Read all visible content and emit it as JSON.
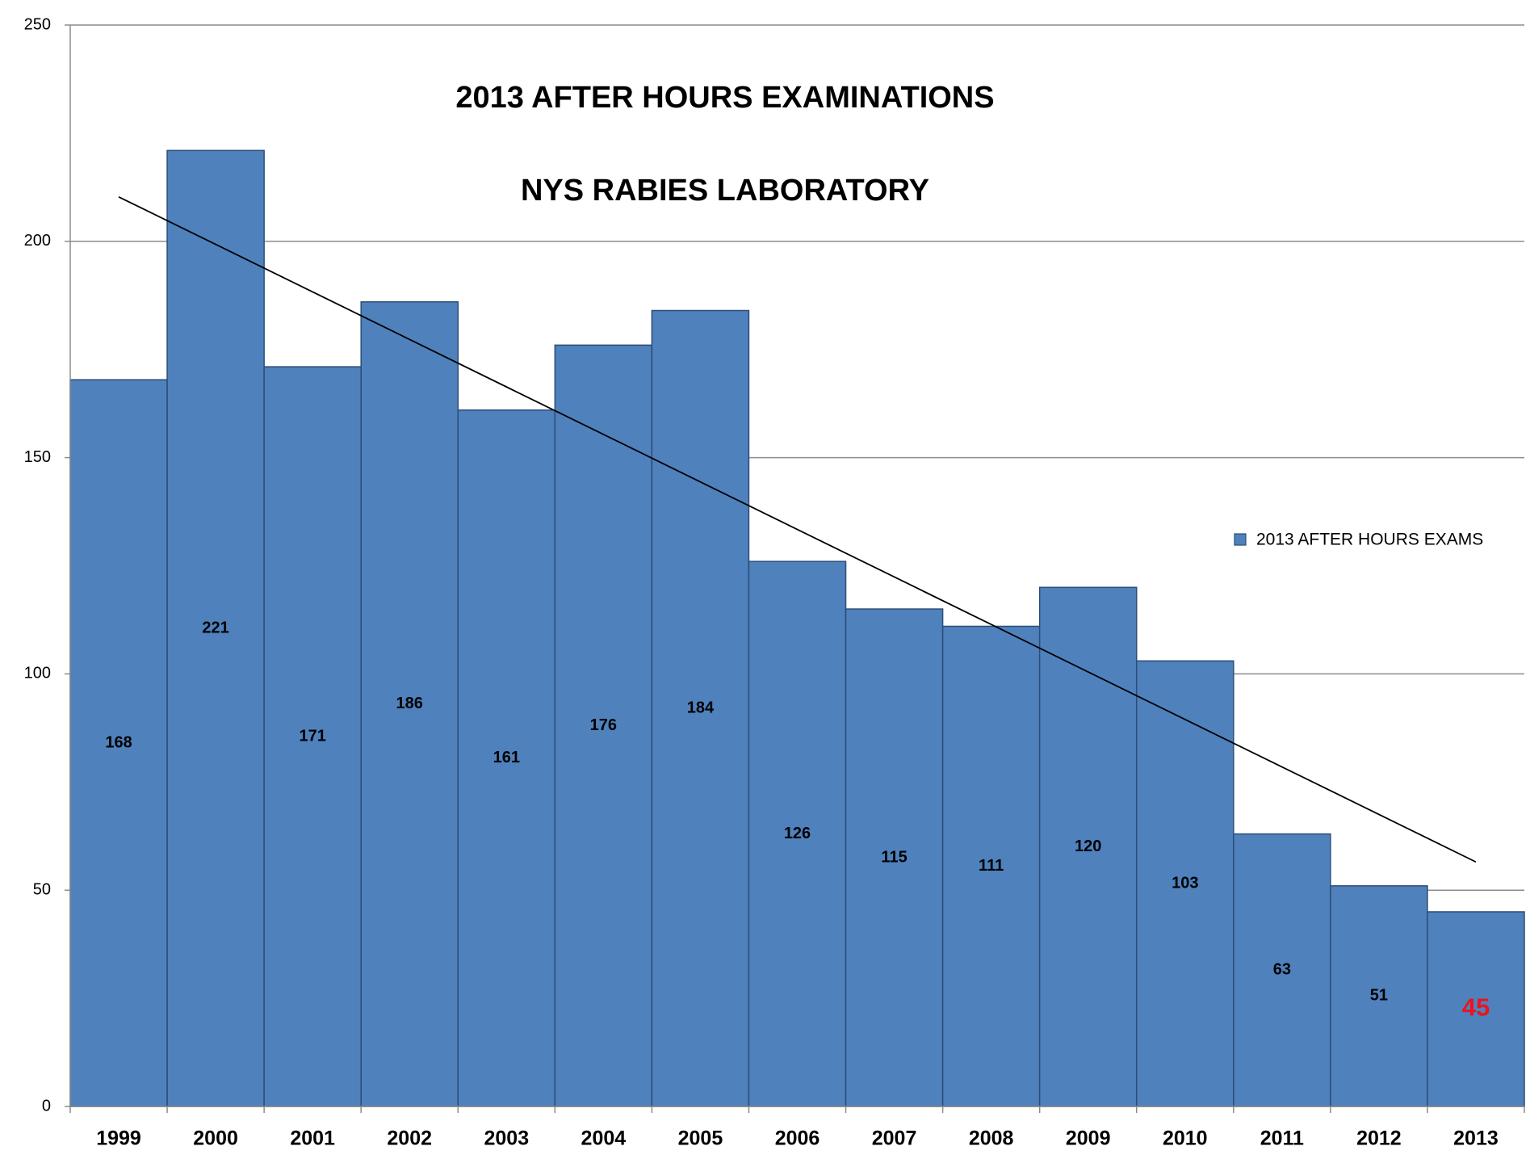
{
  "chart_data": {
    "type": "bar",
    "title": "2013 AFTER HOURS EXAMINATIONS",
    "subtitle": "NYS RABIES LABORATORY",
    "categories": [
      "1999",
      "2000",
      "2001",
      "2002",
      "2003",
      "2004",
      "2005",
      "2006",
      "2007",
      "2008",
      "2009",
      "2010",
      "2011",
      "2012",
      "2013"
    ],
    "series": [
      {
        "name": "2013 AFTER HOURS EXAMS",
        "color": "#4f81bd",
        "values": [
          168,
          221,
          171,
          186,
          161,
          176,
          184,
          126,
          115,
          111,
          120,
          103,
          63,
          51,
          45
        ]
      }
    ],
    "label_colors": [
      "#000000",
      "#000000",
      "#000000",
      "#000000",
      "#000000",
      "#000000",
      "#000000",
      "#000000",
      "#000000",
      "#000000",
      "#000000",
      "#000000",
      "#000000",
      "#000000",
      "#e8161e"
    ],
    "ylim": [
      0,
      250
    ],
    "yticks": [
      0,
      50,
      100,
      150,
      200,
      250
    ],
    "grid": true,
    "trendline": "linear",
    "legend": "right"
  }
}
